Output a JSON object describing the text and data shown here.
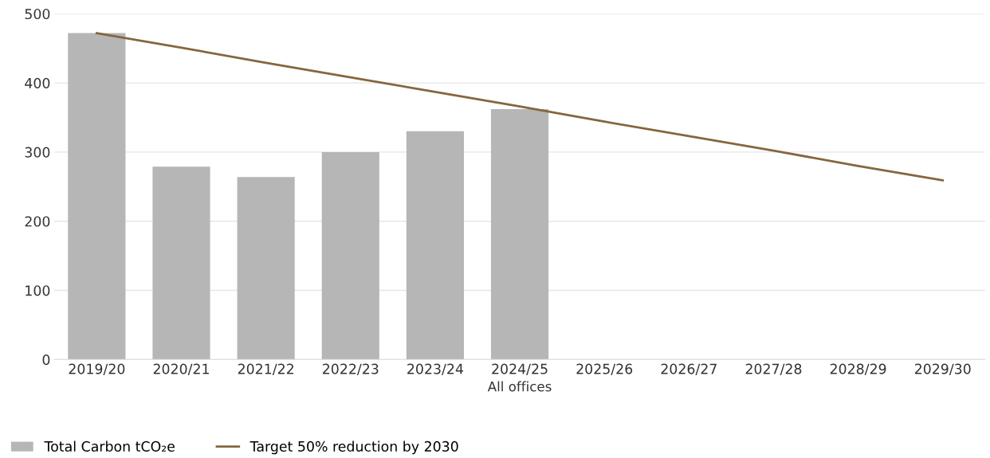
{
  "chart_data": {
    "type": "bar",
    "xlabel": "All offices",
    "categories": [
      "2019/20",
      "2020/21",
      "2021/22",
      "2022/23",
      "2023/24",
      "2024/25",
      "2025/26",
      "2026/27",
      "2027/28",
      "2028/29",
      "2029/30"
    ],
    "series": [
      {
        "name": "Total Carbon tCO₂e",
        "color": "#b5b6b5",
        "values": [
          472,
          279,
          264,
          300,
          330,
          362,
          null,
          null,
          null,
          null,
          null
        ]
      },
      {
        "name": "Target 50% reduction by 2030",
        "type": "line",
        "color": "#86663d",
        "values": [
          472,
          451,
          429,
          408,
          387,
          366,
          344,
          323,
          302,
          280,
          259
        ]
      }
    ],
    "ylim": [
      0,
      500
    ],
    "yticks": [
      0,
      100,
      200,
      300,
      400,
      500
    ],
    "grid": "y",
    "legend": "bottom left"
  }
}
